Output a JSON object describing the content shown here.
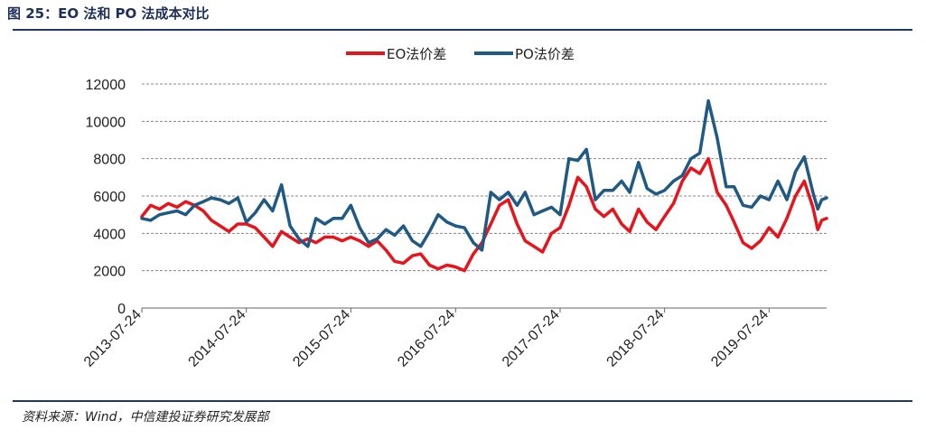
{
  "title": "图 25：EO 法和 PO 法成本对比",
  "source": "资料来源：Wind，中信建投证券研究发展部",
  "colors": {
    "eo": "#e8141c",
    "po": "#1f5a86",
    "grid": "#888888",
    "rule": "#1f3864"
  },
  "chart_data": {
    "type": "line",
    "title": "",
    "xlabel": "",
    "ylabel": "",
    "ylim": [
      0,
      12000
    ],
    "yticks": [
      "0",
      "2000",
      "4000",
      "6000",
      "8000",
      "10000",
      "12000"
    ],
    "xticks": [
      "2013-07-24",
      "2014-07-24",
      "2015-07-24",
      "2016-07-24",
      "2017-07-24",
      "2018-07-24",
      "2019-07-24"
    ],
    "xlim": [
      "2013-07-24",
      "2020-02-10"
    ],
    "grid": "horizontal dashed",
    "legend": "top-center",
    "series": [
      {
        "name": "EO法价差",
        "color": "#e8141c",
        "points": [
          [
            "2013-07-24",
            4900
          ],
          [
            "2013-08-24",
            5500
          ],
          [
            "2013-09-24",
            5300
          ],
          [
            "2013-10-24",
            5600
          ],
          [
            "2013-11-24",
            5400
          ],
          [
            "2013-12-24",
            5700
          ],
          [
            "2014-01-24",
            5500
          ],
          [
            "2014-02-24",
            5200
          ],
          [
            "2014-03-24",
            4700
          ],
          [
            "2014-04-24",
            4400
          ],
          [
            "2014-05-24",
            4100
          ],
          [
            "2014-06-24",
            4500
          ],
          [
            "2014-07-24",
            4500
          ],
          [
            "2014-08-24",
            4300
          ],
          [
            "2014-09-24",
            3800
          ],
          [
            "2014-10-24",
            3300
          ],
          [
            "2014-11-24",
            4100
          ],
          [
            "2014-12-24",
            3800
          ],
          [
            "2015-01-24",
            3500
          ],
          [
            "2015-02-24",
            3700
          ],
          [
            "2015-03-24",
            3500
          ],
          [
            "2015-04-24",
            3800
          ],
          [
            "2015-05-24",
            3800
          ],
          [
            "2015-06-24",
            3600
          ],
          [
            "2015-07-24",
            3800
          ],
          [
            "2015-08-24",
            3600
          ],
          [
            "2015-09-24",
            3300
          ],
          [
            "2015-10-24",
            3600
          ],
          [
            "2015-11-24",
            3100
          ],
          [
            "2015-12-24",
            2500
          ],
          [
            "2016-01-24",
            2400
          ],
          [
            "2016-02-24",
            2800
          ],
          [
            "2016-03-24",
            2900
          ],
          [
            "2016-04-24",
            2300
          ],
          [
            "2016-05-24",
            2100
          ],
          [
            "2016-06-24",
            2300
          ],
          [
            "2016-07-24",
            2200
          ],
          [
            "2016-08-24",
            2000
          ],
          [
            "2016-09-24",
            2900
          ],
          [
            "2016-10-24",
            3500
          ],
          [
            "2016-11-24",
            4500
          ],
          [
            "2016-12-24",
            5500
          ],
          [
            "2017-01-24",
            5800
          ],
          [
            "2017-02-24",
            4500
          ],
          [
            "2017-03-24",
            3600
          ],
          [
            "2017-04-24",
            3300
          ],
          [
            "2017-05-24",
            3000
          ],
          [
            "2017-06-24",
            4000
          ],
          [
            "2017-07-24",
            4300
          ],
          [
            "2017-08-24",
            5500
          ],
          [
            "2017-09-24",
            7000
          ],
          [
            "2017-10-24",
            6500
          ],
          [
            "2017-11-24",
            5300
          ],
          [
            "2017-12-24",
            4900
          ],
          [
            "2018-01-24",
            5300
          ],
          [
            "2018-02-24",
            4500
          ],
          [
            "2018-03-24",
            4100
          ],
          [
            "2018-04-24",
            5300
          ],
          [
            "2018-05-24",
            4600
          ],
          [
            "2018-06-24",
            4200
          ],
          [
            "2018-07-24",
            4900
          ],
          [
            "2018-08-24",
            5600
          ],
          [
            "2018-09-24",
            6800
          ],
          [
            "2018-10-24",
            7500
          ],
          [
            "2018-11-24",
            7200
          ],
          [
            "2018-12-24",
            8000
          ],
          [
            "2019-01-24",
            6200
          ],
          [
            "2019-02-24",
            5500
          ],
          [
            "2019-03-24",
            4600
          ],
          [
            "2019-04-24",
            3500
          ],
          [
            "2019-05-24",
            3200
          ],
          [
            "2019-06-24",
            3600
          ],
          [
            "2019-07-24",
            4300
          ],
          [
            "2019-08-24",
            3800
          ],
          [
            "2019-09-24",
            4800
          ],
          [
            "2019-10-24",
            6000
          ],
          [
            "2019-11-24",
            6800
          ],
          [
            "2019-12-24",
            5400
          ],
          [
            "2020-01-10",
            4200
          ],
          [
            "2020-01-24",
            4700
          ],
          [
            "2020-02-10",
            4800
          ]
        ]
      },
      {
        "name": "PO法价差",
        "color": "#1f5a86",
        "points": [
          [
            "2013-07-24",
            4800
          ],
          [
            "2013-08-24",
            4700
          ],
          [
            "2013-09-24",
            5000
          ],
          [
            "2013-10-24",
            5100
          ],
          [
            "2013-11-24",
            5200
          ],
          [
            "2013-12-24",
            5000
          ],
          [
            "2014-01-24",
            5500
          ],
          [
            "2014-02-24",
            5700
          ],
          [
            "2014-03-24",
            5900
          ],
          [
            "2014-04-24",
            5800
          ],
          [
            "2014-05-24",
            5600
          ],
          [
            "2014-06-24",
            5900
          ],
          [
            "2014-07-24",
            4600
          ],
          [
            "2014-08-24",
            5100
          ],
          [
            "2014-09-24",
            5800
          ],
          [
            "2014-10-24",
            5200
          ],
          [
            "2014-11-24",
            6600
          ],
          [
            "2014-12-24",
            4400
          ],
          [
            "2015-01-24",
            3700
          ],
          [
            "2015-02-24",
            3300
          ],
          [
            "2015-03-24",
            4800
          ],
          [
            "2015-04-24",
            4500
          ],
          [
            "2015-05-24",
            4800
          ],
          [
            "2015-06-24",
            4800
          ],
          [
            "2015-07-24",
            5500
          ],
          [
            "2015-08-24",
            4300
          ],
          [
            "2015-09-24",
            3500
          ],
          [
            "2015-10-24",
            3700
          ],
          [
            "2015-11-24",
            4200
          ],
          [
            "2015-12-24",
            3900
          ],
          [
            "2016-01-24",
            4400
          ],
          [
            "2016-02-24",
            3600
          ],
          [
            "2016-03-24",
            3300
          ],
          [
            "2016-04-24",
            4100
          ],
          [
            "2016-05-24",
            5000
          ],
          [
            "2016-06-24",
            4600
          ],
          [
            "2016-07-24",
            4400
          ],
          [
            "2016-08-24",
            4300
          ],
          [
            "2016-09-24",
            3500
          ],
          [
            "2016-10-24",
            3100
          ],
          [
            "2016-11-24",
            6200
          ],
          [
            "2016-12-24",
            5800
          ],
          [
            "2017-01-24",
            6200
          ],
          [
            "2017-02-24",
            5500
          ],
          [
            "2017-03-24",
            6200
          ],
          [
            "2017-04-24",
            5000
          ],
          [
            "2017-05-24",
            5200
          ],
          [
            "2017-06-24",
            5400
          ],
          [
            "2017-07-24",
            5000
          ],
          [
            "2017-08-24",
            8000
          ],
          [
            "2017-09-24",
            7900
          ],
          [
            "2017-10-24",
            8500
          ],
          [
            "2017-11-24",
            5800
          ],
          [
            "2017-12-24",
            6300
          ],
          [
            "2018-01-24",
            6300
          ],
          [
            "2018-02-24",
            6800
          ],
          [
            "2018-03-24",
            6200
          ],
          [
            "2018-04-24",
            7800
          ],
          [
            "2018-05-24",
            6400
          ],
          [
            "2018-06-24",
            6100
          ],
          [
            "2018-07-24",
            6300
          ],
          [
            "2018-08-24",
            6800
          ],
          [
            "2018-09-24",
            7100
          ],
          [
            "2018-10-24",
            8000
          ],
          [
            "2018-11-24",
            8300
          ],
          [
            "2018-12-24",
            11100
          ],
          [
            "2019-01-24",
            9100
          ],
          [
            "2019-02-24",
            6500
          ],
          [
            "2019-03-24",
            6500
          ],
          [
            "2019-04-24",
            5500
          ],
          [
            "2019-05-24",
            5400
          ],
          [
            "2019-06-24",
            6000
          ],
          [
            "2019-07-24",
            5800
          ],
          [
            "2019-08-24",
            6800
          ],
          [
            "2019-09-24",
            5800
          ],
          [
            "2019-10-24",
            7300
          ],
          [
            "2019-11-24",
            8100
          ],
          [
            "2019-12-24",
            6200
          ],
          [
            "2020-01-10",
            5300
          ],
          [
            "2020-01-24",
            5800
          ],
          [
            "2020-02-10",
            5900
          ]
        ]
      }
    ]
  }
}
